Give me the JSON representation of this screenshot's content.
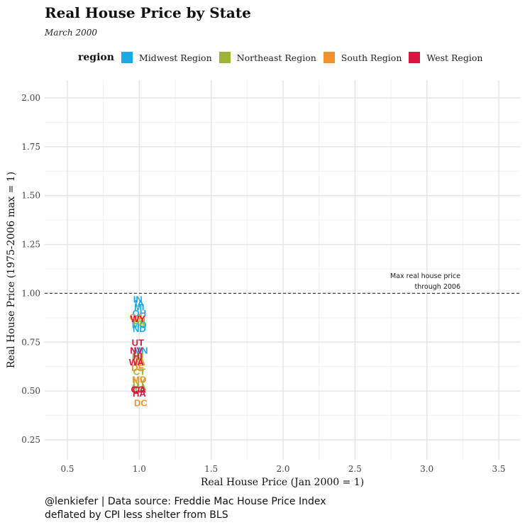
{
  "title": "Real House Price by State",
  "subtitle": "March 2000",
  "caption": {
    "line1": "@lenkiefer | Data source: Freddie Mac House Price Index",
    "line2": "deflated by CPI less shelter from BLS"
  },
  "legend": {
    "title": "region",
    "items": [
      {
        "label": "Midwest Region",
        "color": "#1aa9e6"
      },
      {
        "label": "Northeast Region",
        "color": "#9ab53a"
      },
      {
        "label": "South Region",
        "color": "#f39330"
      },
      {
        "label": "West Region",
        "color": "#d6173f"
      }
    ]
  },
  "chart_data": {
    "type": "scatter",
    "title": "Real House Price by State",
    "subtitle": "March 2000",
    "xlabel": "Real House Price (Jan 2000 = 1)",
    "ylabel": "Real House Price (1975-2006 max = 1)",
    "xlim": [
      0.35,
      3.65
    ],
    "ylim": [
      0.15,
      2.1
    ],
    "xticks": [
      0.5,
      1.0,
      1.5,
      2.0,
      2.5,
      3.0,
      3.5
    ],
    "xtick_labels": [
      "0.5",
      "1.0",
      "1.5",
      "2.0",
      "2.5",
      "3.0",
      "3.5"
    ],
    "yticks": [
      0.25,
      0.5,
      0.75,
      1.0,
      1.25,
      1.5,
      1.75,
      2.0
    ],
    "ytick_labels": [
      "0.25",
      "0.50",
      "0.75",
      "1.00",
      "1.25",
      "1.50",
      "1.75",
      "2.00"
    ],
    "grid": true,
    "legend_position": "top",
    "reference_line": {
      "y": 1.0,
      "style": "dashed",
      "label_line1": "Max real house price",
      "label_line2": "through 2006"
    },
    "series": [
      {
        "name": "Midwest Region",
        "color": "#1aa9e6",
        "points": [
          {
            "label": "IN",
            "x": 0.99,
            "y": 0.97
          },
          {
            "label": "IA",
            "x": 1.0,
            "y": 0.95
          },
          {
            "label": "MI",
            "x": 1.0,
            "y": 0.93
          },
          {
            "label": "OH",
            "x": 1.0,
            "y": 0.9
          },
          {
            "label": "MO",
            "x": 1.0,
            "y": 0.84
          },
          {
            "label": "ND",
            "x": 1.0,
            "y": 0.82
          },
          {
            "label": "MN",
            "x": 1.01,
            "y": 0.71
          }
        ]
      },
      {
        "name": "Northeast Region",
        "color": "#9ab53a",
        "points": [
          {
            "label": "PA",
            "x": 1.0,
            "y": 0.85
          },
          {
            "label": "NJ",
            "x": 0.99,
            "y": 0.68
          },
          {
            "label": "CT",
            "x": 1.0,
            "y": 0.6
          },
          {
            "label": "NY",
            "x": 1.0,
            "y": 0.55
          },
          {
            "label": "MA",
            "x": 1.0,
            "y": 0.52
          }
        ]
      },
      {
        "name": "South Region",
        "color": "#f39330",
        "points": [
          {
            "label": "GA",
            "x": 0.98,
            "y": 0.88
          },
          {
            "label": "TN",
            "x": 1.0,
            "y": 0.87
          },
          {
            "label": "VA",
            "x": 1.0,
            "y": 0.65
          },
          {
            "label": "DE",
            "x": 0.99,
            "y": 0.62
          },
          {
            "label": "MD",
            "x": 1.0,
            "y": 0.56
          },
          {
            "label": "DC",
            "x": 1.01,
            "y": 0.44
          }
        ]
      },
      {
        "name": "West Region",
        "color": "#d6173f",
        "points": [
          {
            "label": "WY",
            "x": 0.99,
            "y": 0.87
          },
          {
            "label": "UT",
            "x": 0.99,
            "y": 0.75
          },
          {
            "label": "NV",
            "x": 0.98,
            "y": 0.71
          },
          {
            "label": "HI",
            "x": 0.99,
            "y": 0.68
          },
          {
            "label": "WA",
            "x": 0.98,
            "y": 0.65
          },
          {
            "label": "CA",
            "x": 1.0,
            "y": 0.51
          },
          {
            "label": "CO",
            "x": 0.99,
            "y": 0.51
          },
          {
            "label": "HA",
            "x": 1.0,
            "y": 0.49
          }
        ]
      }
    ]
  }
}
